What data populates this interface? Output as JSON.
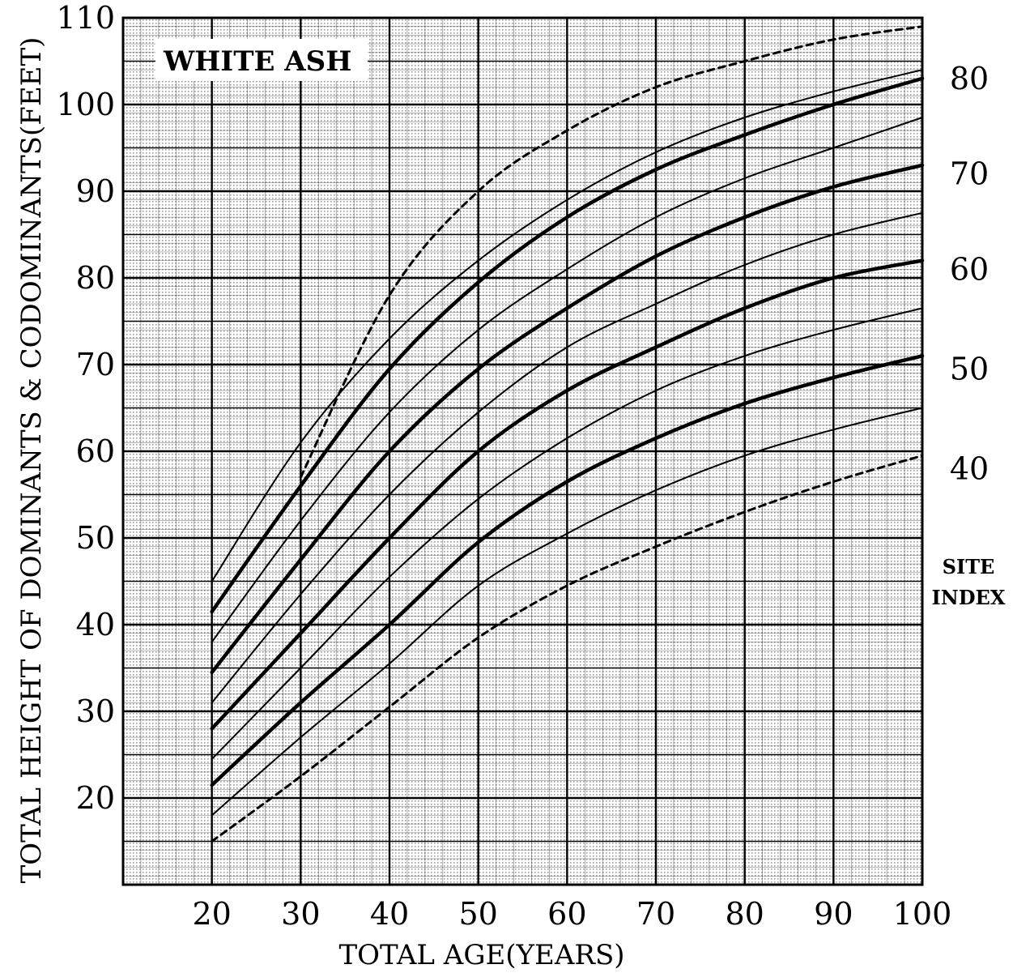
{
  "chart_data": {
    "type": "line",
    "title": "WHITE ASH",
    "xlabel": "TOTAL AGE(YEARS)",
    "ylabel": "TOTAL HEIGHT OF DOMINANTS & CODOMINANTS(FEET)",
    "xlim": [
      10,
      100
    ],
    "ylim": [
      10,
      110
    ],
    "x_ticks": [
      "20",
      "30",
      "40",
      "50",
      "60",
      "70",
      "80",
      "90",
      "100"
    ],
    "y_ticks": [
      "20",
      "30",
      "40",
      "50",
      "60",
      "70",
      "80",
      "90",
      "100",
      "110"
    ],
    "right_label_lines": [
      "SITE",
      "INDEX"
    ],
    "right_ticks": [
      {
        "label": "80",
        "y": 103
      },
      {
        "label": "70",
        "y": 92
      },
      {
        "label": "60",
        "y": 81
      },
      {
        "label": "50",
        "y": 69.5
      },
      {
        "label": "40",
        "y": 58
      }
    ],
    "grid": true,
    "x": [
      20,
      30,
      40,
      50,
      60,
      70,
      80,
      90,
      100
    ],
    "series": [
      {
        "style": "dashed",
        "values": [
          null,
          57,
          78,
          90,
          97,
          102,
          105,
          107.5,
          109
        ]
      },
      {
        "style": "thin",
        "values": [
          45,
          61,
          73,
          82,
          89,
          94.5,
          98.5,
          101.5,
          104
        ]
      },
      {
        "style": "thick",
        "values": [
          41.5,
          56,
          69.5,
          79.5,
          87,
          92.5,
          96.5,
          100,
          103
        ]
      },
      {
        "style": "thin",
        "values": [
          38,
          52,
          64.5,
          74,
          81,
          87,
          91.5,
          95,
          98.5
        ]
      },
      {
        "style": "thick",
        "values": [
          34.5,
          47.5,
          60,
          69.5,
          76.5,
          82.5,
          87,
          90.5,
          93
        ]
      },
      {
        "style": "thin",
        "values": [
          31,
          43.5,
          55,
          64.5,
          72,
          77,
          81.5,
          85,
          87.5
        ]
      },
      {
        "style": "thick",
        "values": [
          28,
          39,
          50,
          60,
          67,
          72,
          76.5,
          80,
          82
        ]
      },
      {
        "style": "thin",
        "values": [
          24.5,
          35,
          45.5,
          54.5,
          61.5,
          67,
          71,
          74,
          76.5
        ]
      },
      {
        "style": "thick",
        "values": [
          21.5,
          31,
          40,
          49.5,
          56.5,
          61.5,
          65.5,
          68.5,
          71
        ]
      },
      {
        "style": "thin",
        "values": [
          18,
          27,
          35.5,
          44.5,
          50.5,
          55.5,
          59.5,
          62.5,
          65
        ]
      },
      {
        "style": "dashed",
        "values": [
          15,
          22.5,
          30.5,
          38.5,
          44.5,
          49,
          53,
          56.5,
          59.5
        ]
      }
    ]
  }
}
